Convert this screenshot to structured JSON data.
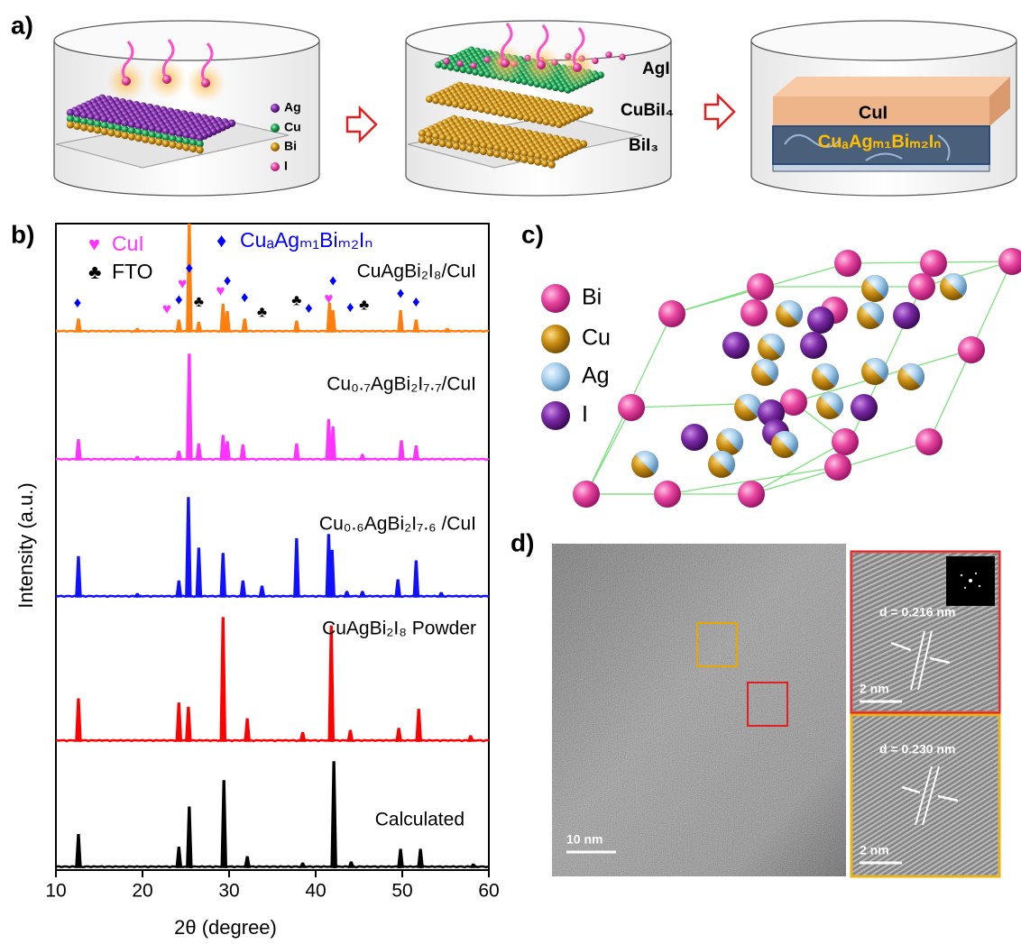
{
  "panel_labels": [
    "a)",
    "b)",
    "c)",
    "d)"
  ],
  "panel_a": {
    "element_legend": [
      "Ag",
      "Cu",
      "Bi",
      "I"
    ],
    "layers": [
      "AgI",
      "CuBiI₄",
      "BiI₃"
    ],
    "product": [
      "CuI",
      "CuₐAgₘ₁Biₘ₂Iₙ"
    ]
  },
  "chart_data": {
    "type": "xrd",
    "xlabel": "2θ (degree)",
    "ylabel": "Intensity (a.u.)",
    "xlim": [
      10,
      60
    ],
    "xticks": [
      10,
      20,
      30,
      40,
      50,
      60
    ],
    "legend": [
      {
        "symbol": "♥",
        "label": "CuI",
        "color": "#ff33ff"
      },
      {
        "symbol": "♦",
        "label": "CuₐAgₘ₁Biₘ₂Iₙ",
        "color": "#0000ff"
      },
      {
        "symbol": "♣",
        "label": "FTO",
        "color": "#000000"
      }
    ],
    "series": [
      {
        "name": "CuAgBi₂I₈/CuI",
        "color": "#ff7f0e",
        "x": [
          12.6,
          19.4,
          24.2,
          25.4,
          26.5,
          29.3,
          29.8,
          31.8,
          37.8,
          41.6,
          42,
          49.8,
          51.6,
          55.2
        ],
        "values": [
          12,
          3,
          11,
          103,
          9,
          26,
          19,
          12,
          10,
          27,
          20,
          20,
          11,
          3
        ]
      },
      {
        "name": "Cu₀.₇AgBi₂I₇.₇/CuI",
        "color": "#ff33ff",
        "x": [
          12.6,
          19.4,
          24.2,
          25.4,
          26.5,
          29.3,
          29.8,
          31.6,
          37.8,
          41.5,
          42,
          45.4,
          49.9,
          51.6
        ],
        "values": [
          19,
          3,
          8,
          100,
          15,
          23,
          17,
          14,
          15,
          38,
          31,
          5,
          18,
          13
        ]
      },
      {
        "name": "Cu₀.₆AgBi₂I₇.₆ /CuI",
        "color": "#1010ff",
        "x": [
          12.6,
          19.4,
          24.2,
          25.3,
          26.5,
          29.3,
          31.6,
          33.8,
          37.8,
          41.5,
          41.9,
          43.6,
          45.4,
          49.5,
          51.6,
          54.5
        ],
        "values": [
          38,
          3,
          15,
          94,
          46,
          41,
          15,
          10,
          55,
          59,
          44,
          5,
          5,
          16,
          34,
          4
        ]
      },
      {
        "name": "CuAgBi₂I₈ Powder",
        "color": "#ff0000",
        "x": [
          12.6,
          24.2,
          25.3,
          29.3,
          32.1,
          38.5,
          41.8,
          44,
          49.6,
          51.9,
          57.9
        ],
        "values": [
          40,
          36,
          32,
          117,
          21,
          8,
          109,
          10,
          12,
          30,
          5
        ]
      },
      {
        "name": "Calculated",
        "color": "#000000",
        "x": [
          12.6,
          24.2,
          25.4,
          29.4,
          32.1,
          38.5,
          42.1,
          44.1,
          49.8,
          52.1,
          58.2
        ],
        "values": [
          31,
          19,
          57,
          82,
          10,
          4,
          100,
          5,
          17,
          17,
          3
        ]
      }
    ],
    "markers": [
      {
        "symbol": "♦",
        "color": "#0000ff",
        "x": 12.5,
        "y": 20
      },
      {
        "symbol": "♦",
        "color": "#0000ff",
        "x": 24.2,
        "y": 23
      },
      {
        "symbol": "♦",
        "color": "#0000ff",
        "x": 25.4,
        "y": 53
      },
      {
        "symbol": "♦",
        "color": "#0000ff",
        "x": 29.8,
        "y": 41
      },
      {
        "symbol": "♦",
        "color": "#0000ff",
        "x": 31.8,
        "y": 25
      },
      {
        "symbol": "♦",
        "color": "#0000ff",
        "x": 39.2,
        "y": 15
      },
      {
        "symbol": "♦",
        "color": "#0000ff",
        "x": 42,
        "y": 41
      },
      {
        "symbol": "♦",
        "color": "#0000ff",
        "x": 44,
        "y": 16
      },
      {
        "symbol": "♦",
        "color": "#0000ff",
        "x": 49.8,
        "y": 29
      },
      {
        "symbol": "♦",
        "color": "#0000ff",
        "x": 51.6,
        "y": 21
      },
      {
        "symbol": "♥",
        "color": "#ff33ff",
        "x": 22.8,
        "y": 14
      },
      {
        "symbol": "♥",
        "color": "#ff33ff",
        "x": 24.6,
        "y": 38
      },
      {
        "symbol": "♥",
        "color": "#ff33ff",
        "x": 29,
        "y": 31
      },
      {
        "symbol": "♥",
        "color": "#ff33ff",
        "x": 41.5,
        "y": 24
      },
      {
        "symbol": "♣",
        "color": "#000000",
        "x": 26.5,
        "y": 21
      },
      {
        "symbol": "♣",
        "color": "#000000",
        "x": 33.8,
        "y": 11
      },
      {
        "symbol": "♣",
        "color": "#000000",
        "x": 37.8,
        "y": 22
      },
      {
        "symbol": "♣",
        "color": "#000000",
        "x": 45.6,
        "y": 18
      }
    ]
  },
  "panel_c": {
    "legend": [
      "Bi",
      "Cu",
      "Ag",
      "I"
    ]
  },
  "panel_d": {
    "main_scale": "10 nm",
    "inset_top": {
      "spacing": "d = 0.216 nm",
      "scale": "2 nm"
    },
    "inset_bottom": {
      "spacing": "d = 0.230 nm",
      "scale": "2 nm"
    }
  }
}
